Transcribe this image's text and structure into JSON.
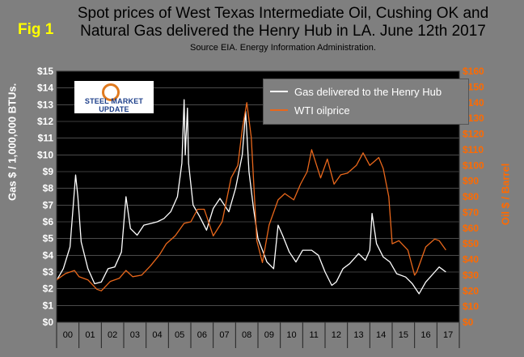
{
  "figure": {
    "label": "Fig 1",
    "title_line1": "Spot prices of West Texas Intermediate Oil, Cushing OK and",
    "title_line2": "Natural Gas delivered the Henry Hub in LA. June 12th 2017",
    "source": "Source EIA. Energy Information Administration.",
    "logo_text": "STEEL MARKET UPDATE"
  },
  "colors": {
    "gas": "#ffffff",
    "oil": "#e9671b",
    "plot_bg": "#000000",
    "frame_bg": "#7f7f7f",
    "right_axis_text": "#ff6a00"
  },
  "chart_data": {
    "type": "line",
    "x_categories": [
      "00",
      "01",
      "02",
      "03",
      "04",
      "05",
      "06",
      "07",
      "08",
      "09",
      "10",
      "11",
      "12",
      "13",
      "14",
      "15",
      "16",
      "17"
    ],
    "ylabel_left": "Gas $ / 1,000,000 BTUs.",
    "ylabel_right": "Oil $ / Barrel",
    "ylim_left": [
      0,
      15
    ],
    "ylim_right": [
      0,
      160
    ],
    "y_ticks_left": [
      "$0",
      "$1",
      "$2",
      "$3",
      "$4",
      "$5",
      "$6",
      "$7",
      "$8",
      "$9",
      "$10",
      "$11",
      "$12",
      "$13",
      "$14",
      "$15"
    ],
    "y_ticks_right": [
      "$0",
      "$10",
      "$20",
      "$30",
      "$40",
      "$50",
      "$60",
      "$70",
      "$80",
      "$90",
      "$100",
      "$110",
      "$120",
      "$130",
      "$140",
      "$150",
      "$160"
    ],
    "legend_position": "top-right",
    "series": [
      {
        "name": "Gas delivered to the Henry Hub",
        "axis": "left",
        "x": [
          2000.0,
          2000.3,
          2000.6,
          2000.85,
          2000.95,
          2001.1,
          2001.4,
          2001.7,
          2002.0,
          2002.3,
          2002.6,
          2002.9,
          2003.1,
          2003.3,
          2003.6,
          2003.9,
          2004.2,
          2004.5,
          2004.8,
          2005.1,
          2005.4,
          2005.6,
          2005.7,
          2005.75,
          2005.85,
          2005.9,
          2006.1,
          2006.4,
          2006.7,
          2007.0,
          2007.3,
          2007.7,
          2008.0,
          2008.3,
          2008.45,
          2008.6,
          2008.8,
          2009.0,
          2009.4,
          2009.7,
          2009.9,
          2010.1,
          2010.4,
          2010.7,
          2011.0,
          2011.4,
          2011.7,
          2012.0,
          2012.3,
          2012.5,
          2012.8,
          2013.1,
          2013.5,
          2013.8,
          2014.0,
          2014.1,
          2014.3,
          2014.6,
          2014.9,
          2015.2,
          2015.6,
          2015.9,
          2016.2,
          2016.5,
          2016.9,
          2017.1,
          2017.4
        ],
        "values": [
          2.5,
          3.2,
          4.5,
          8.8,
          7.5,
          4.8,
          3.2,
          2.3,
          2.4,
          3.2,
          3.3,
          4.2,
          7.5,
          5.6,
          5.2,
          5.8,
          5.9,
          6.0,
          6.2,
          6.6,
          7.5,
          9.5,
          13.3,
          10.0,
          12.8,
          9.5,
          7.0,
          6.3,
          5.5,
          6.8,
          7.4,
          6.6,
          8.0,
          10.0,
          12.6,
          9.0,
          6.8,
          5.0,
          3.6,
          3.2,
          5.8,
          5.2,
          4.2,
          3.6,
          4.3,
          4.3,
          4.0,
          3.0,
          2.2,
          2.4,
          3.2,
          3.5,
          4.1,
          3.7,
          4.3,
          6.5,
          4.7,
          3.9,
          3.6,
          2.9,
          2.7,
          2.3,
          1.7,
          2.4,
          3.0,
          3.3,
          3.0
        ]
      },
      {
        "name": "WTI oilprice",
        "axis": "right",
        "x": [
          2000.0,
          2000.4,
          2000.8,
          2001.0,
          2001.4,
          2001.8,
          2002.0,
          2002.4,
          2002.8,
          2003.1,
          2003.4,
          2003.8,
          2004.2,
          2004.6,
          2004.9,
          2005.3,
          2005.7,
          2006.0,
          2006.3,
          2006.6,
          2007.0,
          2007.4,
          2007.8,
          2008.1,
          2008.3,
          2008.5,
          2008.7,
          2008.95,
          2009.2,
          2009.5,
          2009.9,
          2010.2,
          2010.6,
          2010.9,
          2011.2,
          2011.4,
          2011.8,
          2012.1,
          2012.4,
          2012.7,
          2013.0,
          2013.4,
          2013.7,
          2014.0,
          2014.4,
          2014.6,
          2014.85,
          2015.0,
          2015.3,
          2015.7,
          2016.0,
          2016.1,
          2016.5,
          2016.9,
          2017.1,
          2017.4
        ],
        "values": [
          27,
          31,
          33,
          29,
          27,
          21,
          20,
          26,
          28,
          33,
          29,
          30,
          36,
          43,
          50,
          55,
          63,
          64,
          72,
          72,
          55,
          64,
          92,
          100,
          123,
          140,
          118,
          52,
          38,
          62,
          78,
          82,
          78,
          88,
          96,
          110,
          92,
          104,
          88,
          94,
          95,
          100,
          108,
          100,
          105,
          98,
          80,
          50,
          52,
          46,
          30,
          32,
          48,
          53,
          52,
          46
        ]
      }
    ]
  }
}
